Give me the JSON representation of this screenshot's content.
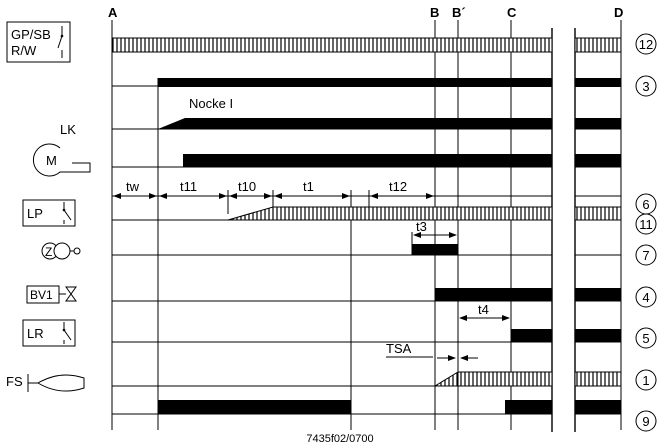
{
  "column_labels": {
    "A": "A",
    "B": "B",
    "Bp": "B´",
    "C": "C",
    "D": "D"
  },
  "device_labels": {
    "gp_sb_line1": "GP/SB",
    "gp_sb_line2": "R/W",
    "lk": "LK",
    "motor": "M",
    "lp": "LP",
    "ignition": "Z",
    "bv1": "BV1",
    "lr": "LR",
    "fs": "FS"
  },
  "cam_label": "Nocke I",
  "interval_labels": {
    "tw": "tw",
    "t11": "t11",
    "t10": "t10",
    "t1": "t1",
    "t12": "t12",
    "t3": "t3",
    "t4": "t4",
    "tsa": "TSA"
  },
  "terminal_numbers": {
    "r12": "12",
    "r3": "3",
    "r6": "6",
    "r11": "11",
    "r7": "7",
    "r4": "4",
    "r5": "5",
    "r1": "1",
    "r9": "9"
  },
  "figure_code": "7435f02/0700"
}
